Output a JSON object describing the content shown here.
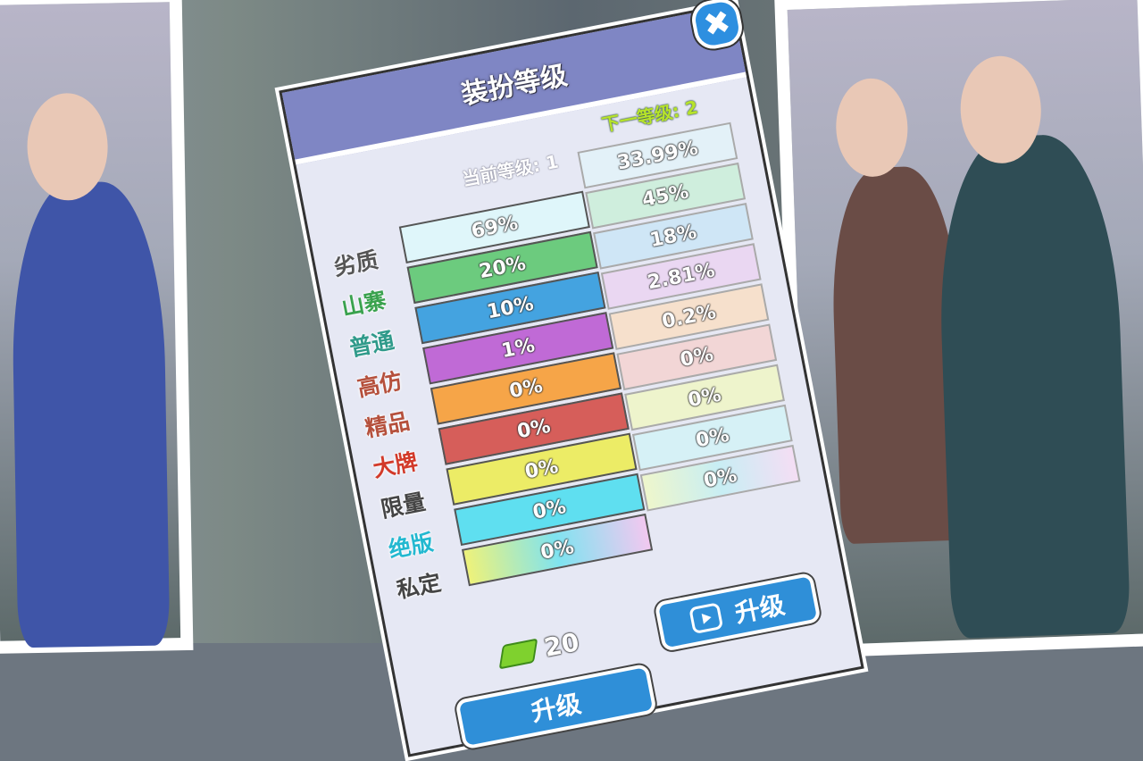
{
  "panel": {
    "title": "装扮等级",
    "close_icon": "close-icon",
    "current_level_label": "当前等级: 1",
    "next_level_label": "下一等级: 2"
  },
  "tiers": [
    {
      "name": "劣质",
      "color": "#555555",
      "current": "69%",
      "next": "33.99%",
      "bar": "#dff6fa"
    },
    {
      "name": "山寨",
      "color": "#3aa24e",
      "current": "20%",
      "next": "45%",
      "bar": "#6ccb7e"
    },
    {
      "name": "普通",
      "color": "#2f9a8a",
      "current": "10%",
      "next": "18%",
      "bar": "#44a3e0"
    },
    {
      "name": "高仿",
      "color": "#b5503c",
      "current": "1%",
      "next": "2.81%",
      "bar": "#c06ad6"
    },
    {
      "name": "精品",
      "color": "#b5503c",
      "current": "0%",
      "next": "0.2%",
      "bar": "#f6a548"
    },
    {
      "name": "大牌",
      "color": "#d23a2a",
      "current": "0%",
      "next": "0%",
      "bar": "#d65e5a"
    },
    {
      "name": "限量",
      "color": "#444444",
      "current": "0%",
      "next": "0%",
      "bar": "#ecec66"
    },
    {
      "name": "绝版",
      "color": "#22b8d0",
      "current": "0%",
      "next": "0%",
      "bar": "#5fdff0"
    },
    {
      "name": "私定",
      "color": "#444444",
      "current": "0%",
      "next": "0%",
      "bar": "linear-gradient(90deg,#eef27a,#7fe3f0,#f2c8f0)"
    }
  ],
  "next_bars": [
    "#e3f1f8",
    "#cfeedd",
    "#cfe6f6",
    "#ead7f2",
    "#f6e0cc",
    "#f2d6d6",
    "#eef4cc",
    "#d6f1f6",
    "linear-gradient(90deg,#eef6cc,#c8eef4,#f4def4)"
  ],
  "cost": {
    "icon": "cash-icon",
    "amount": "20"
  },
  "buttons": {
    "upgrade": "升级",
    "video_upgrade": "升级",
    "video_icon": "video-icon"
  }
}
